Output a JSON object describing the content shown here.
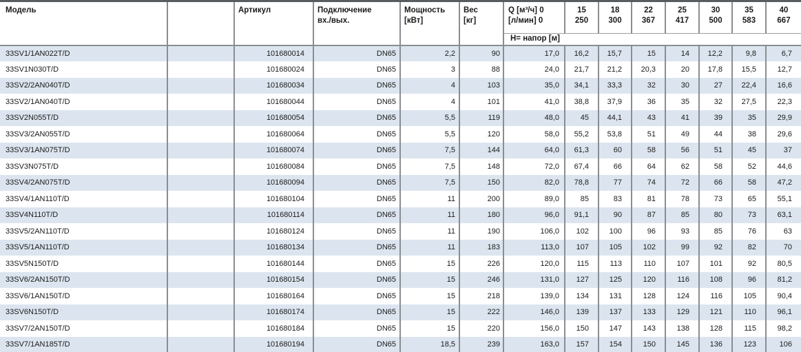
{
  "colors": {
    "row_stripe": "#dce5ef",
    "grid_line": "#898d92",
    "thin_line": "#9aa0a6",
    "header_top_border": "#595c5f",
    "text": "#1a1a1a"
  },
  "table": {
    "columns": {
      "model": "Модель",
      "article": "Артикул",
      "connection_line1": "Подключение",
      "connection_line2": "вх./вых.",
      "power_line1": "Мощность",
      "power_line2": "[кВт]",
      "weight_line1": "Вес",
      "weight_line2": "[кг]",
      "q_line1": "Q [м³/ч] 0",
      "q_line2": "[л/мин] 0",
      "flow_columns": [
        {
          "m3h": "15",
          "lmin": "250"
        },
        {
          "m3h": "18",
          "lmin": "300"
        },
        {
          "m3h": "22",
          "lmin": "367"
        },
        {
          "m3h": "25",
          "lmin": "417"
        },
        {
          "m3h": "30",
          "lmin": "500"
        },
        {
          "m3h": "35",
          "lmin": "583"
        },
        {
          "m3h": "40",
          "lmin": "667"
        }
      ],
      "head_row_label": "Н= напор [м]"
    },
    "rows": [
      {
        "model": "33SV1/1AN022T/D",
        "article": "101680014",
        "connection": "DN65",
        "power": "2,2",
        "weight": "90",
        "q0": "17,0",
        "heads": [
          "16,2",
          "15,7",
          "15",
          "14",
          "12,2",
          "9,8",
          "6,7"
        ]
      },
      {
        "model": "33SV1N030T/D",
        "article": "101680024",
        "connection": "DN65",
        "power": "3",
        "weight": "88",
        "q0": "24,0",
        "heads": [
          "21,7",
          "21,2",
          "20,3",
          "20",
          "17,8",
          "15,5",
          "12,7"
        ]
      },
      {
        "model": "33SV2/2AN040T/D",
        "article": "101680034",
        "connection": "DN65",
        "power": "4",
        "weight": "103",
        "q0": "35,0",
        "heads": [
          "34,1",
          "33,3",
          "32",
          "30",
          "27",
          "22,4",
          "16,6"
        ]
      },
      {
        "model": "33SV2/1AN040T/D",
        "article": "101680044",
        "connection": "DN65",
        "power": "4",
        "weight": "101",
        "q0": "41,0",
        "heads": [
          "38,8",
          "37,9",
          "36",
          "35",
          "32",
          "27,5",
          "22,3"
        ]
      },
      {
        "model": "33SV2N055T/D",
        "article": "101680054",
        "connection": "DN65",
        "power": "5,5",
        "weight": "119",
        "q0": "48,0",
        "heads": [
          "45",
          "44,1",
          "43",
          "41",
          "39",
          "35",
          "29,9"
        ]
      },
      {
        "model": "33SV3/2AN055T/D",
        "article": "101680064",
        "connection": "DN65",
        "power": "5,5",
        "weight": "120",
        "q0": "58,0",
        "heads": [
          "55,2",
          "53,8",
          "51",
          "49",
          "44",
          "38",
          "29,6"
        ]
      },
      {
        "model": "33SV3/1AN075T/D",
        "article": "101680074",
        "connection": "DN65",
        "power": "7,5",
        "weight": "144",
        "q0": "64,0",
        "heads": [
          "61,3",
          "60",
          "58",
          "56",
          "51",
          "45",
          "37"
        ]
      },
      {
        "model": "33SV3N075T/D",
        "article": "101680084",
        "connection": "DN65",
        "power": "7,5",
        "weight": "148",
        "q0": "72,0",
        "heads": [
          "67,4",
          "66",
          "64",
          "62",
          "58",
          "52",
          "44,6"
        ]
      },
      {
        "model": "33SV4/2AN075T/D",
        "article": "101680094",
        "connection": "DN65",
        "power": "7,5",
        "weight": "150",
        "q0": "82,0",
        "heads": [
          "78,8",
          "77",
          "74",
          "72",
          "66",
          "58",
          "47,2"
        ]
      },
      {
        "model": "33SV4/1AN110T/D",
        "article": "101680104",
        "connection": "DN65",
        "power": "11",
        "weight": "200",
        "q0": "89,0",
        "heads": [
          "85",
          "83",
          "81",
          "78",
          "73",
          "65",
          "55,1"
        ]
      },
      {
        "model": "33SV4N110T/D",
        "article": "101680114",
        "connection": "DN65",
        "power": "11",
        "weight": "180",
        "q0": "96,0",
        "heads": [
          "91,1",
          "90",
          "87",
          "85",
          "80",
          "73",
          "63,1"
        ]
      },
      {
        "model": "33SV5/2AN110T/D",
        "article": "101680124",
        "connection": "DN65",
        "power": "11",
        "weight": "190",
        "q0": "106,0",
        "heads": [
          "102",
          "100",
          "96",
          "93",
          "85",
          "76",
          "63"
        ]
      },
      {
        "model": "33SV5/1AN110T/D",
        "article": "101680134",
        "connection": "DN65",
        "power": "11",
        "weight": "183",
        "q0": "113,0",
        "heads": [
          "107",
          "105",
          "102",
          "99",
          "92",
          "82",
          "70"
        ]
      },
      {
        "model": "33SV5N150T/D",
        "article": "101680144",
        "connection": "DN65",
        "power": "15",
        "weight": "226",
        "q0": "120,0",
        "heads": [
          "115",
          "113",
          "110",
          "107",
          "101",
          "92",
          "80,5"
        ]
      },
      {
        "model": "33SV6/2AN150T/D",
        "article": "101680154",
        "connection": "DN65",
        "power": "15",
        "weight": "246",
        "q0": "131,0",
        "heads": [
          "127",
          "125",
          "120",
          "116",
          "108",
          "96",
          "81,2"
        ]
      },
      {
        "model": "33SV6/1AN150T/D",
        "article": "101680164",
        "connection": "DN65",
        "power": "15",
        "weight": "218",
        "q0": "139,0",
        "heads": [
          "134",
          "131",
          "128",
          "124",
          "116",
          "105",
          "90,4"
        ]
      },
      {
        "model": "33SV6N150T/D",
        "article": "101680174",
        "connection": "DN65",
        "power": "15",
        "weight": "222",
        "q0": "146,0",
        "heads": [
          "139",
          "137",
          "133",
          "129",
          "121",
          "110",
          "96,1"
        ]
      },
      {
        "model": "33SV7/2AN150T/D",
        "article": "101680184",
        "connection": "DN65",
        "power": "15",
        "weight": "220",
        "q0": "156,0",
        "heads": [
          "150",
          "147",
          "143",
          "138",
          "128",
          "115",
          "98,2"
        ]
      },
      {
        "model": "33SV7/1AN185T/D",
        "article": "101680194",
        "connection": "DN65",
        "power": "18,5",
        "weight": "239",
        "q0": "163,0",
        "heads": [
          "157",
          "154",
          "150",
          "145",
          "136",
          "123",
          "106"
        ]
      }
    ]
  }
}
